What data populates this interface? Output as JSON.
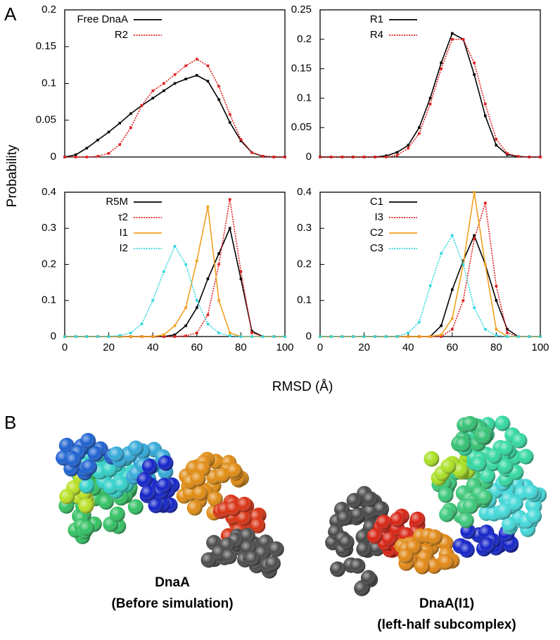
{
  "figure": {
    "panel_a": "A",
    "panel_b": "B",
    "ylabel": "Probability",
    "xlabel": "RMSD (Å)"
  },
  "captions": [
    [
      "DnaA",
      "(Before simulation)"
    ],
    [
      "DnaA(I1)",
      "(left-half subcomplex)"
    ]
  ],
  "chart_data": [
    {
      "type": "line",
      "x": [
        0,
        5,
        10,
        15,
        20,
        25,
        30,
        35,
        40,
        45,
        50,
        55,
        60,
        65,
        70,
        75,
        80,
        85,
        90,
        95,
        100
      ],
      "xlim": [
        0,
        100
      ],
      "ylim": [
        0,
        0.2
      ],
      "yticks": [
        0,
        0.05,
        0.1,
        0.15,
        0.2
      ],
      "legend": "upper-left",
      "series": [
        {
          "name": "Free DnaA",
          "color": "#000000",
          "dashed": false,
          "values": [
            0,
            0.003,
            0.012,
            0.023,
            0.034,
            0.046,
            0.059,
            0.07,
            0.08,
            0.09,
            0.1,
            0.106,
            0.111,
            0.103,
            0.078,
            0.047,
            0.022,
            0.006,
            0.001,
            0,
            0
          ]
        },
        {
          "name": "R2",
          "color": "#e02020",
          "dashed": true,
          "values": [
            0,
            0,
            0,
            0.001,
            0.005,
            0.017,
            0.04,
            0.07,
            0.09,
            0.1,
            0.112,
            0.124,
            0.133,
            0.124,
            0.096,
            0.058,
            0.024,
            0.006,
            0.001,
            0,
            0
          ]
        }
      ]
    },
    {
      "type": "line",
      "x": [
        0,
        5,
        10,
        15,
        20,
        25,
        30,
        35,
        40,
        45,
        50,
        55,
        60,
        65,
        70,
        75,
        80,
        85,
        90,
        95,
        100
      ],
      "xlim": [
        0,
        100
      ],
      "ylim": [
        0,
        0.25
      ],
      "yticks": [
        0,
        0.05,
        0.1,
        0.15,
        0.2,
        0.25
      ],
      "legend": "upper-left",
      "series": [
        {
          "name": "R1",
          "color": "#000000",
          "dashed": false,
          "values": [
            0,
            0,
            0,
            0,
            0,
            0,
            0.002,
            0.008,
            0.02,
            0.05,
            0.1,
            0.16,
            0.21,
            0.2,
            0.14,
            0.07,
            0.02,
            0.004,
            0.001,
            0,
            0
          ]
        },
        {
          "name": "R4",
          "color": "#e02020",
          "dashed": true,
          "values": [
            0,
            0,
            0,
            0,
            0,
            0,
            0,
            0.003,
            0.015,
            0.04,
            0.09,
            0.15,
            0.2,
            0.2,
            0.16,
            0.09,
            0.03,
            0.006,
            0.001,
            0,
            0
          ]
        }
      ]
    },
    {
      "type": "line",
      "x": [
        0,
        5,
        10,
        15,
        20,
        25,
        30,
        35,
        40,
        45,
        50,
        55,
        60,
        65,
        70,
        75,
        80,
        85,
        90,
        95,
        100
      ],
      "xlim": [
        0,
        100
      ],
      "xticks": [
        0,
        20,
        40,
        60,
        80,
        100
      ],
      "ylim": [
        0,
        0.4
      ],
      "yticks": [
        0,
        0.1,
        0.2,
        0.3,
        0.4
      ],
      "legend": "upper-left",
      "series": [
        {
          "name": "R5M",
          "color": "#000000",
          "dashed": false,
          "values": [
            0,
            0,
            0,
            0,
            0,
            0,
            0,
            0,
            0,
            0,
            0.005,
            0.03,
            0.08,
            0.16,
            0.23,
            0.3,
            0.16,
            0.015,
            0,
            0,
            0
          ]
        },
        {
          "name": "τ2",
          "color": "#e02020",
          "dashed": true,
          "values": [
            0,
            0,
            0,
            0,
            0,
            0,
            0,
            0,
            0,
            0,
            0,
            0.002,
            0.01,
            0.06,
            0.2,
            0.38,
            0.18,
            0.01,
            0,
            0,
            0
          ]
        },
        {
          "name": "I1",
          "color": "#f0a020",
          "dashed": false,
          "values": [
            0,
            0,
            0,
            0,
            0,
            0,
            0,
            0,
            0,
            0.005,
            0.03,
            0.08,
            0.21,
            0.36,
            0.1,
            0.01,
            0,
            0,
            0,
            0,
            0
          ]
        },
        {
          "name": "I2",
          "color": "#30d8e0",
          "dashed": true,
          "values": [
            0,
            0,
            0,
            0,
            0,
            0.003,
            0.01,
            0.035,
            0.1,
            0.18,
            0.25,
            0.2,
            0.1,
            0.035,
            0.01,
            0.002,
            0,
            0,
            0,
            0,
            0
          ]
        }
      ]
    },
    {
      "type": "line",
      "x": [
        0,
        5,
        10,
        15,
        20,
        25,
        30,
        35,
        40,
        45,
        50,
        55,
        60,
        65,
        70,
        75,
        80,
        85,
        90,
        95,
        100
      ],
      "xlim": [
        0,
        100
      ],
      "xticks": [
        0,
        20,
        40,
        60,
        80,
        100
      ],
      "ylim": [
        0,
        0.4
      ],
      "yticks": [
        0,
        0.1,
        0.2,
        0.3,
        0.4
      ],
      "legend": "upper-left",
      "series": [
        {
          "name": "C1",
          "color": "#000000",
          "dashed": false,
          "values": [
            0,
            0,
            0,
            0,
            0,
            0,
            0,
            0,
            0,
            0,
            0,
            0.03,
            0.13,
            0.21,
            0.28,
            0.2,
            0.1,
            0.02,
            0,
            0,
            0
          ]
        },
        {
          "name": "I3",
          "color": "#e02020",
          "dashed": true,
          "values": [
            0,
            0,
            0,
            0,
            0,
            0,
            0,
            0,
            0,
            0,
            0,
            0,
            0.02,
            0.1,
            0.27,
            0.37,
            0.14,
            0.01,
            0,
            0,
            0
          ]
        },
        {
          "name": "C2",
          "color": "#f0a020",
          "dashed": false,
          "values": [
            0,
            0,
            0,
            0,
            0,
            0,
            0,
            0,
            0,
            0,
            0,
            0.005,
            0.05,
            0.2,
            0.4,
            0.2,
            0.02,
            0,
            0,
            0,
            0
          ]
        },
        {
          "name": "C3",
          "color": "#30d8e0",
          "dashed": true,
          "values": [
            0,
            0,
            0,
            0,
            0,
            0,
            0,
            0,
            0.01,
            0.04,
            0.14,
            0.23,
            0.28,
            0.2,
            0.08,
            0.02,
            0.003,
            0,
            0,
            0,
            0
          ]
        }
      ]
    }
  ]
}
